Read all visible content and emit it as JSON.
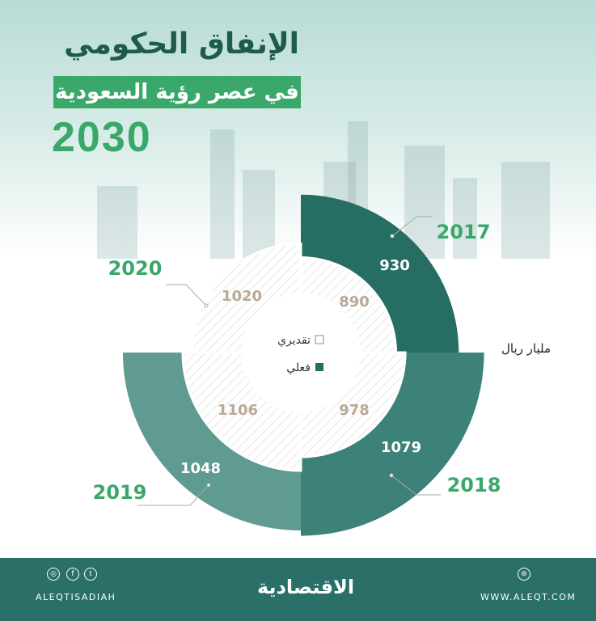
{
  "header": {
    "title": "الإنفاق الحكومي",
    "subtitle": "في عصر رؤية السعودية",
    "vision": "2030"
  },
  "unit": "مليار ريال",
  "legend": {
    "estimated": "تقديري",
    "actual": "فعلي"
  },
  "colors": {
    "actual_2017": "#266e63",
    "actual_2018": "#3d8279",
    "actual_2019": "#5f9b90",
    "year_label": "#3aa86a",
    "estimated_label": "#b9a996",
    "footer": "#2a7068"
  },
  "chart_data": {
    "type": "radial-bar",
    "categories": [
      "2017",
      "2018",
      "2019",
      "2020"
    ],
    "series": [
      {
        "name": "فعلي",
        "values": [
          930,
          1079,
          1048,
          null
        ]
      },
      {
        "name": "تقديري",
        "values": [
          890,
          978,
          1106,
          1020
        ]
      }
    ]
  },
  "labels": {
    "y2017": "2017",
    "y2018": "2018",
    "y2019": "2019",
    "y2020": "2020",
    "a2017": "930",
    "a2018": "1079",
    "a2019": "1048",
    "e2017": "890",
    "e2018": "978",
    "e2019": "1106",
    "e2020": "1020"
  },
  "footer": {
    "handle": "ALEQTISADIAH",
    "logo": "الاقتصادية",
    "website": "WWW.ALEQT.COM",
    "icons": [
      "instagram-icon",
      "facebook-icon",
      "twitter-icon",
      "globe-icon"
    ]
  }
}
